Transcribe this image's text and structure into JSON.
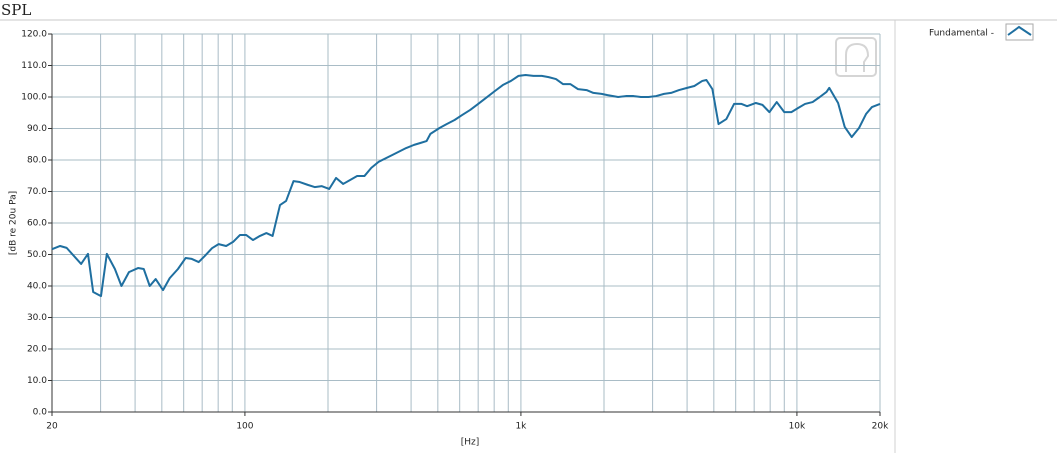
{
  "chart_data": {
    "type": "line",
    "title": "SPL",
    "xlabel": "[Hz]",
    "ylabel": "[dB re 20u Pa]",
    "log_x": true,
    "grid": true,
    "legend": "upper-right",
    "xlim": [
      20,
      20000
    ],
    "ylim": [
      0,
      120
    ],
    "xticks": [
      20,
      100,
      {
        "value": 1000,
        "label": "1k"
      },
      {
        "value": 10000,
        "label": "10k"
      },
      {
        "value": 20000,
        "label": "20k"
      }
    ],
    "xminorticks": [
      30,
      40,
      50,
      60,
      70,
      80,
      90,
      200,
      300,
      400,
      500,
      600,
      700,
      800,
      900,
      2000,
      3000,
      4000,
      5000,
      6000,
      7000,
      8000,
      9000
    ],
    "yticks": [
      {
        "value": 0,
        "label": "0.0"
      },
      {
        "value": 10,
        "label": "10.0"
      },
      {
        "value": 20,
        "label": "20.0"
      },
      {
        "value": 30,
        "label": "30.0"
      },
      {
        "value": 40,
        "label": "40.0"
      },
      {
        "value": 50,
        "label": "50.0"
      },
      {
        "value": 60,
        "label": "60.0"
      },
      {
        "value": 70,
        "label": "70.0"
      },
      {
        "value": 80,
        "label": "80.0"
      },
      {
        "value": 90,
        "label": "90.0"
      },
      {
        "value": 100,
        "label": "100.0"
      },
      {
        "value": 110,
        "label": "110.0"
      },
      {
        "value": 120,
        "label": "120.0"
      }
    ],
    "x": [
      20,
      21.4,
      22.6,
      25.5,
      27,
      28.2,
      30.1,
      31.6,
      33.8,
      35.7,
      38,
      41,
      43,
      45.2,
      47.5,
      50.5,
      53.4,
      57.2,
      61,
      64.2,
      68,
      71.5,
      76,
      80.3,
      85.5,
      90.6,
      96,
      101,
      107,
      113.4,
      119.6,
      126,
      134,
      141,
      150,
      158,
      169,
      179,
      190,
      202,
      214,
      227,
      241,
      255,
      271,
      287,
      305,
      342,
      384,
      410,
      432,
      455,
      470,
      508,
      538,
      575,
      613,
      655,
      700,
      747,
      805,
      860,
      920,
      980,
      1040,
      1110,
      1190,
      1260,
      1340,
      1420,
      1510,
      1610,
      1730,
      1830,
      1960,
      2060,
      2250,
      2400,
      2560,
      2720,
      2900,
      3090,
      3300,
      3500,
      3740,
      4000,
      4250,
      4540,
      4700,
      4940,
      5200,
      5550,
      5920,
      6300,
      6600,
      7100,
      7500,
      7950,
      8450,
      9000,
      9550,
      10100,
      10700,
      11400,
      12100,
      12800,
      13100,
      14100,
      14900,
      15800,
      16800,
      17800,
      18700,
      20000
    ],
    "series": [
      {
        "name": "Fundamental -",
        "color": "#1f6fa0",
        "values": [
          51.7,
          52.7,
          52.1,
          47,
          50.2,
          38.1,
          36.8,
          50.2,
          45.4,
          40,
          44.4,
          45.7,
          45.4,
          40,
          42.2,
          38.7,
          42.5,
          45.4,
          48.9,
          48.6,
          47.6,
          49.5,
          52,
          53.3,
          52.7,
          54,
          56.2,
          56.2,
          54.6,
          55.9,
          56.8,
          55.9,
          65.7,
          67,
          73.3,
          73,
          72.1,
          71.4,
          71.7,
          70.8,
          74.3,
          72.4,
          73.7,
          74.9,
          74.9,
          77.5,
          79.4,
          81.6,
          83.8,
          84.8,
          85.4,
          86,
          88.3,
          90.2,
          91.4,
          92.7,
          94.3,
          95.9,
          97.8,
          99.7,
          101.9,
          103.8,
          105.1,
          106.7,
          107,
          106.7,
          106.7,
          106.3,
          105.7,
          104.1,
          104.1,
          102.5,
          102.2,
          101.3,
          101,
          100.6,
          100,
          100.3,
          100.3,
          100,
          100,
          100.3,
          101,
          101.3,
          102.2,
          102.9,
          103.5,
          105.1,
          105.4,
          102.5,
          91.4,
          93,
          97.8,
          97.8,
          97.1,
          98.1,
          97.5,
          95.2,
          98.4,
          95.2,
          95.2,
          96.5,
          97.8,
          98.4,
          100,
          101.6,
          102.9,
          98.1,
          90.5,
          87.3,
          90.2,
          94.6,
          96.8,
          97.8
        ]
      }
    ]
  }
}
